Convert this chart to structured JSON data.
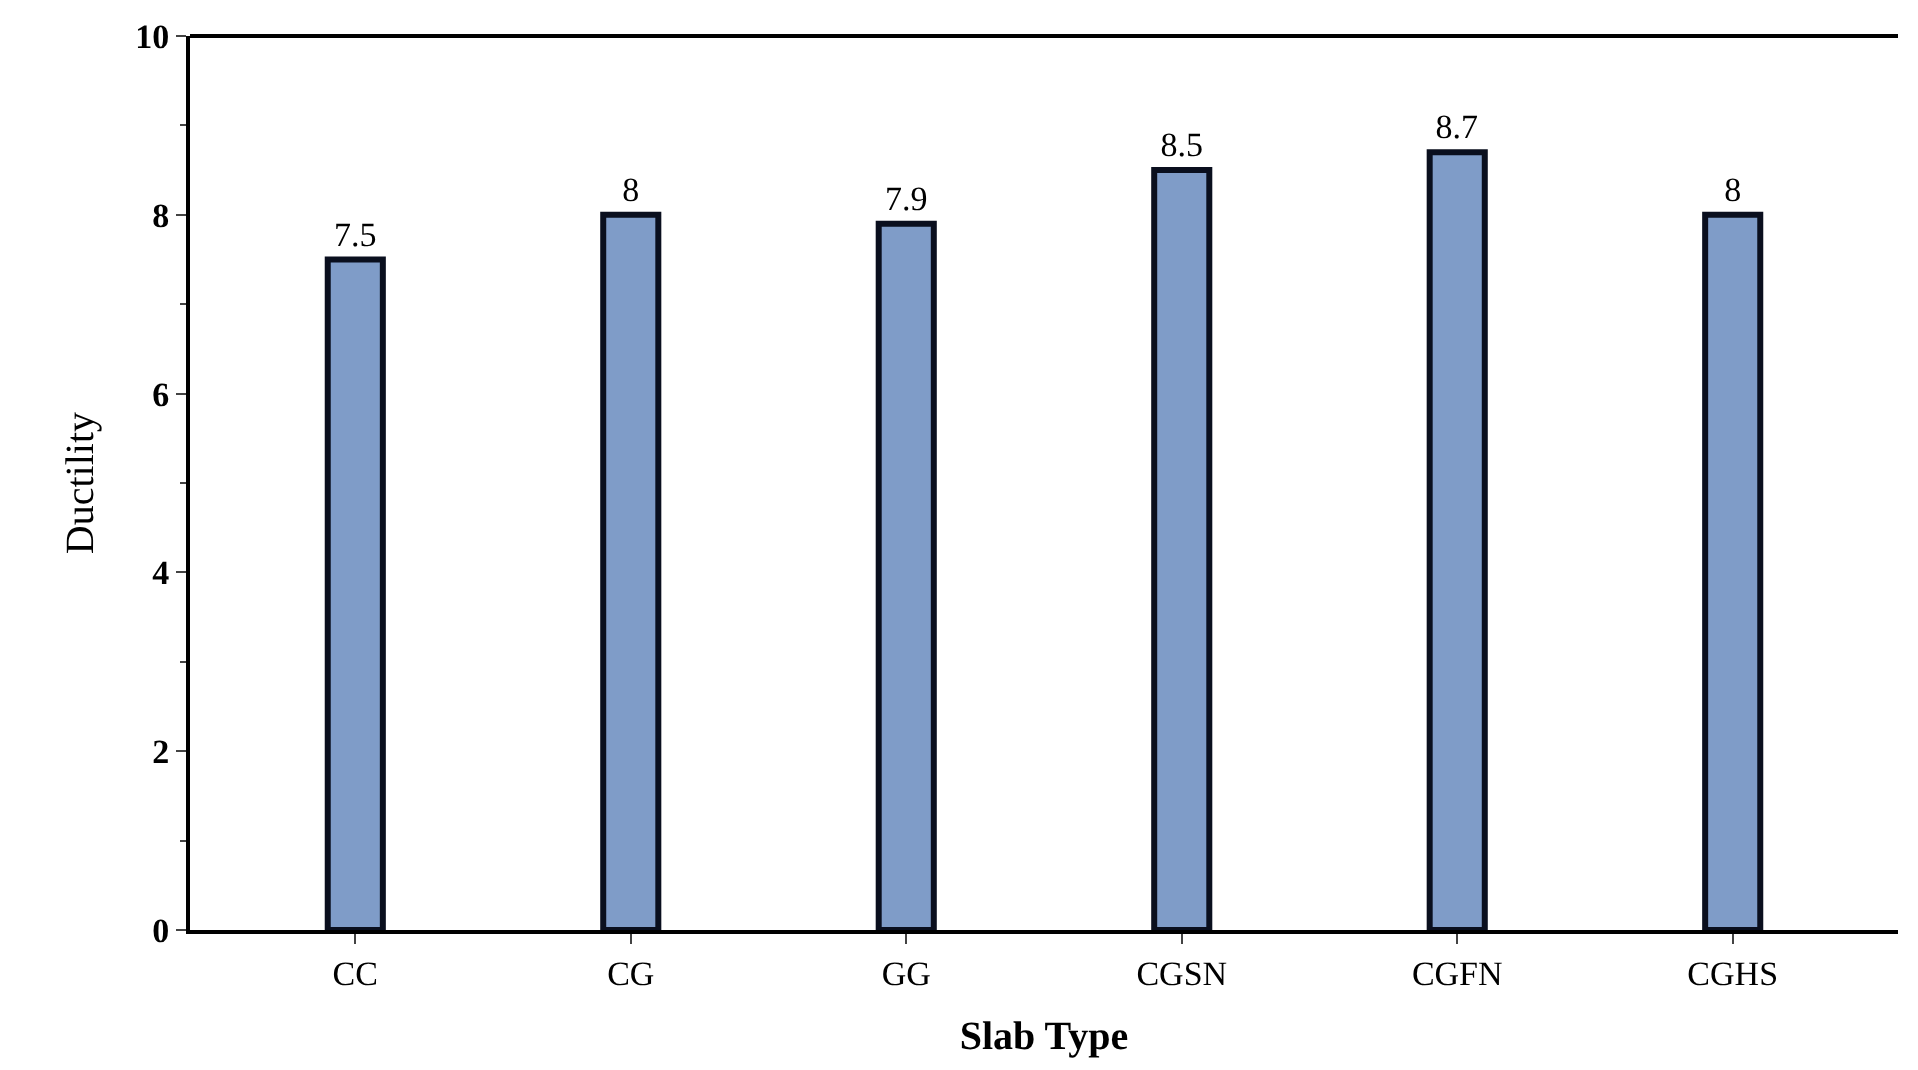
{
  "chart_data": {
    "type": "bar",
    "xlabel": "Slab Type",
    "ylabel": "Ductility",
    "categories": [
      "CC",
      "CG",
      "GG",
      "CGSN",
      "CGFN",
      "CGHS"
    ],
    "values": [
      7.5,
      8,
      7.9,
      8.5,
      8.7,
      8
    ],
    "color": "#7f9cc8",
    "data_labels": true,
    "ylim": [
      0,
      10
    ],
    "yticks": [
      0,
      2,
      4,
      6,
      8,
      10
    ]
  }
}
